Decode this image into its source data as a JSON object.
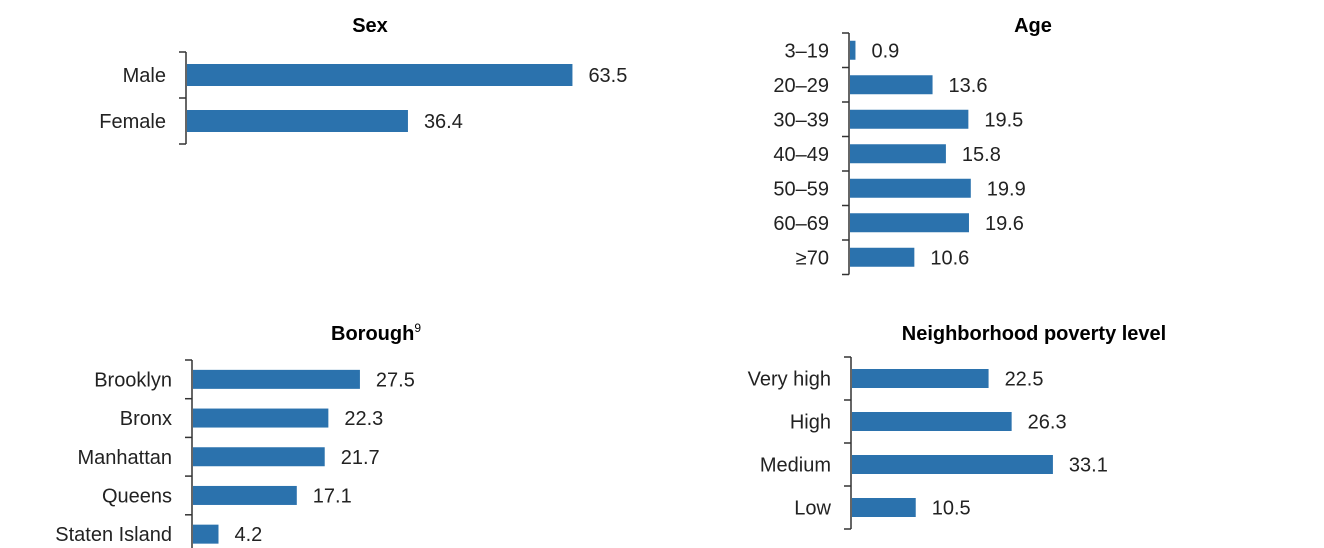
{
  "colors": {
    "bar": "#2b72ad",
    "axis": "#333333",
    "text": "#222222"
  },
  "chart_data": [
    {
      "type": "bar",
      "orientation": "horizontal",
      "title": "Sex",
      "categories": [
        "Male",
        "Female"
      ],
      "values": [
        63.5,
        36.4
      ]
    },
    {
      "type": "bar",
      "orientation": "horizontal",
      "title": "Age",
      "categories": [
        "3–19",
        "20–29",
        "30–39",
        "40–49",
        "50–59",
        "60–69",
        "≥70"
      ],
      "values": [
        0.9,
        13.6,
        19.5,
        15.8,
        19.9,
        19.6,
        10.6
      ]
    },
    {
      "type": "bar",
      "orientation": "horizontal",
      "title": "Borough",
      "title_superscript": "9",
      "categories": [
        "Brooklyn",
        "Bronx",
        "Manhattan",
        "Queens",
        "Staten Island"
      ],
      "values": [
        27.5,
        22.3,
        21.7,
        17.1,
        4.2
      ]
    },
    {
      "type": "bar",
      "orientation": "horizontal",
      "title": "Neighborhood poverty level",
      "categories": [
        "Very high",
        "High",
        "Medium",
        "Low"
      ],
      "values": [
        22.5,
        26.3,
        33.1,
        10.5
      ]
    }
  ]
}
